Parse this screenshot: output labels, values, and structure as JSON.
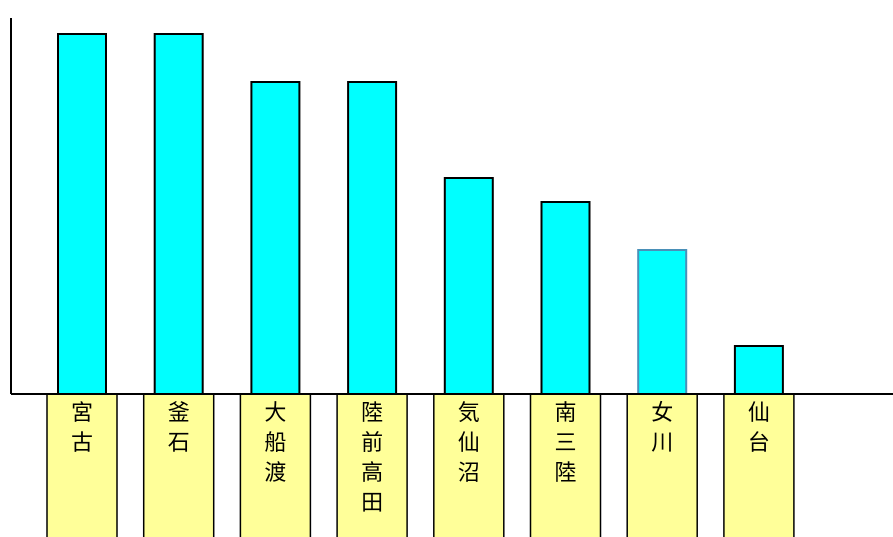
{
  "chart_data": {
    "type": "bar",
    "categories": [
      "宮古",
      "釜石",
      "大船渡",
      "陸前高田",
      "気仙沼",
      "南三陸",
      "女川",
      "仙台"
    ],
    "values": [
      15,
      15,
      13,
      13,
      9,
      8,
      6,
      2
    ],
    "ylim": [
      0,
      16
    ],
    "title": "",
    "xlabel": "",
    "ylabel": "",
    "grid": false,
    "legend": "none",
    "y_tick_labels": false,
    "category_label_orientation": "vertical",
    "colors": {
      "bar_fill": "#00FFFF",
      "bar_stroke": "#000000",
      "highlight_bar_stroke": "#4A90B8",
      "label_box_fill": "#FFFF99",
      "axis": "#000000"
    },
    "highlighted_category": "女川"
  }
}
